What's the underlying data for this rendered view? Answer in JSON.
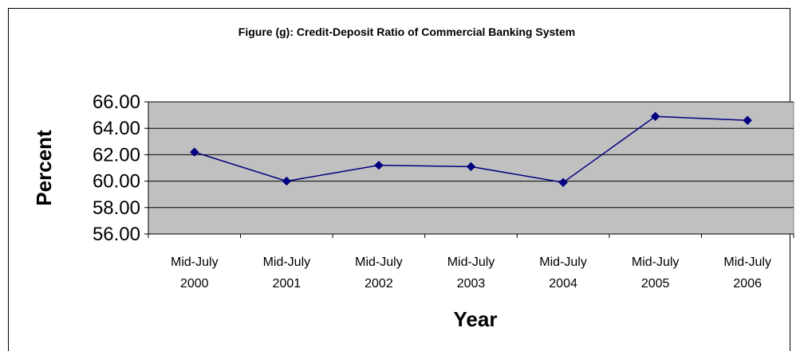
{
  "chart_data": {
    "type": "line",
    "title": "Figure (g): Credit-Deposit Ratio of Commercial Banking System",
    "xlabel": "Year",
    "ylabel": "Percent",
    "categories": [
      [
        "Mid-July",
        "2000"
      ],
      [
        "Mid-July",
        "2001"
      ],
      [
        "Mid-July",
        "2002"
      ],
      [
        "Mid-July",
        "2003"
      ],
      [
        "Mid-July",
        "2004"
      ],
      [
        "Mid-July",
        "2005"
      ],
      [
        "Mid-July",
        "2006"
      ]
    ],
    "series": [
      {
        "values": [
          62.2,
          60.0,
          61.2,
          61.1,
          59.9,
          64.9,
          64.6
        ],
        "color": "#000080"
      }
    ],
    "ylim": [
      56.0,
      66.0
    ],
    "yticks": [
      "56.00",
      "58.00",
      "60.00",
      "62.00",
      "64.00",
      "66.00"
    ],
    "ytick_values": [
      56,
      58,
      60,
      62,
      64,
      66
    ],
    "grid": true,
    "legend": "none",
    "colors": {
      "plot_background": "#c0c0c0",
      "line": "#000080",
      "gridline": "#000000"
    }
  }
}
